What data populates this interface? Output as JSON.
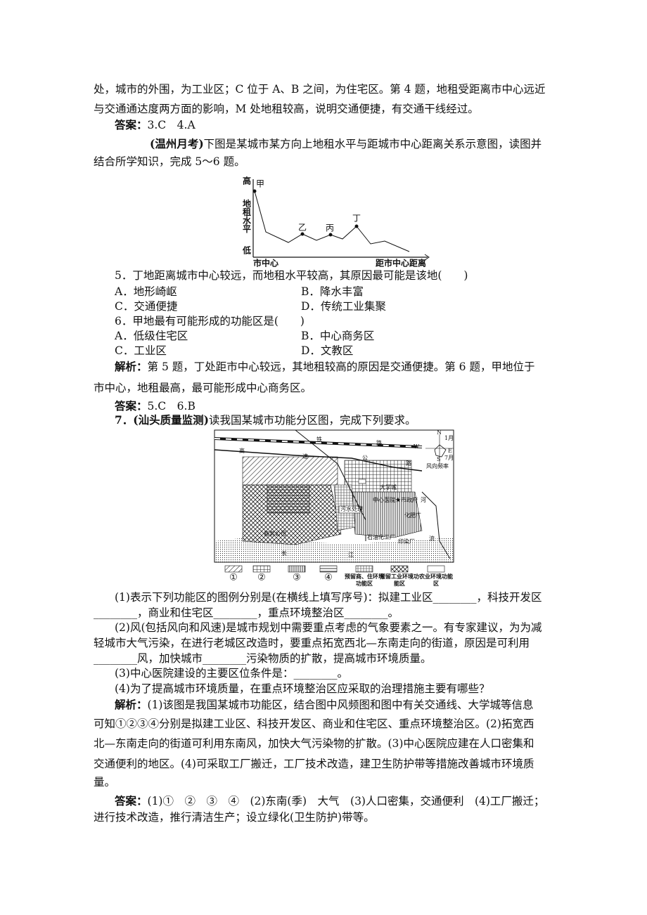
{
  "lines_a": [
    {
      "text": "处，城市的外围，为工业区；C 位于 A、B 之间，为住宅区。第 4 题，地租受距离市中心远近"
    },
    {
      "text": "与交通通达度两方面的影响，M 处地租较高，说明交通便捷，有交通干线经过。"
    },
    {
      "lead": "答案：",
      "text": "3.C　4.A"
    },
    {
      "lead": "(温州月考)",
      "text": "下图是某城市某方向上地租水平与距城市中心距离关系示意图，读图并"
    },
    {
      "text": "结合所学知识，完成 5～6 题。"
    }
  ],
  "rent_chart": {
    "high": "高",
    "low": "低",
    "y_label": "地租水平",
    "origin": "市中心",
    "x_label": "距市中心距离",
    "points": [
      "甲",
      "乙",
      "丙",
      "丁"
    ]
  },
  "questions": {
    "q5": "5．丁地距离城市中心较远，而地租水平较高，其原因最可能是该地(　　)",
    "q5_options": [
      "A．地形崎岖",
      "B．降水丰富",
      "C．交通便捷",
      "D．传统工业集聚"
    ],
    "q6": "6．甲地最有可能形成的功能区是(　　)",
    "q6_options": [
      "A．低级住宅区",
      "B．中心商务区",
      "C．工业区",
      "D．文教区"
    ]
  },
  "lines_b": [
    {
      "lead": "解析：",
      "text": "第 5 题，丁处距市中心较远，其地租较高的原因是交通便捷。第 6 题，甲地位于"
    },
    {
      "text": "市中心，地租最高，最可能形成中心商务区。"
    },
    {
      "lead": "答案：",
      "text": "5.C　6.B"
    },
    {
      "lead": "7．(汕头质量监测)",
      "text": "读我国某城市功能分区图，完成下列要求。"
    }
  ],
  "map": {
    "labels": [
      "铁",
      "路",
      "高",
      "速",
      "公",
      "路",
      "大学城",
      "中心医院★市政府",
      "河",
      "污水处理",
      "化肥厂",
      "商务公司",
      "石油化工厂",
      "印染厂",
      "流",
      "长",
      "江",
      "N",
      "E",
      "S",
      "W",
      "1月",
      "7月",
      "风向频率"
    ],
    "legend": [
      "①",
      "②",
      "③",
      "④",
      "预留商、住环境功能区",
      "预留工业环境功能区",
      "农业环境功能区"
    ]
  },
  "lines_c": [
    {
      "text": "(1)表示下列功能区的图例分别是(在横线上填写序号)：拟建工业区________，科技开发区"
    },
    {
      "text": "________，商业和住宅区________，重点环境整治区________。"
    },
    {
      "text": "(2)风(包括风向和风速)是城市规划中需要重点考虑的气象要素之一。有专家建议，为为减"
    },
    {
      "text": "轻城市大气污染，在进行老城区改造时，要重点拓宽西北—东南走向的街道，原因是可利用"
    },
    {
      "text": "________风，加快城市________污染物质的扩散，提高城市环境质量。"
    },
    {
      "text": "(3)中心医院建设的主要区位条件是：________。"
    },
    {
      "text": "(4)为了提高城市环境质量，在重点环境整治区应采取的治理措施主要有哪些？"
    },
    {
      "lead": "解析：",
      "text": "(1)该图是我国某城市功能区，结合图中风频图和图中有关交通线、大学城等信息"
    },
    {
      "text": "可知①②③④分别是拟建工业区、科技开发区、商业和住宅区、重点环境整治区。(2)拓宽西"
    },
    {
      "text": "北—东南走向的街道可利用东南风，加快大气污染物的扩散。(3)中心医院应建在人口密集和"
    },
    {
      "text": "交通便利的地区。(4)可采取工厂搬迁，工厂技术改造，建卫生防护带等措施改善城市环境质"
    },
    {
      "text": "量。"
    },
    {
      "lead": "答案：",
      "text": "(1)①　②　③　④　(2)东南(季)　大气　(3)人口密集，交通便利　(4)工厂搬迁；"
    },
    {
      "text": "进行技术改造，推行清洁生产；设立绿化(卫生防护)带等。"
    }
  ]
}
